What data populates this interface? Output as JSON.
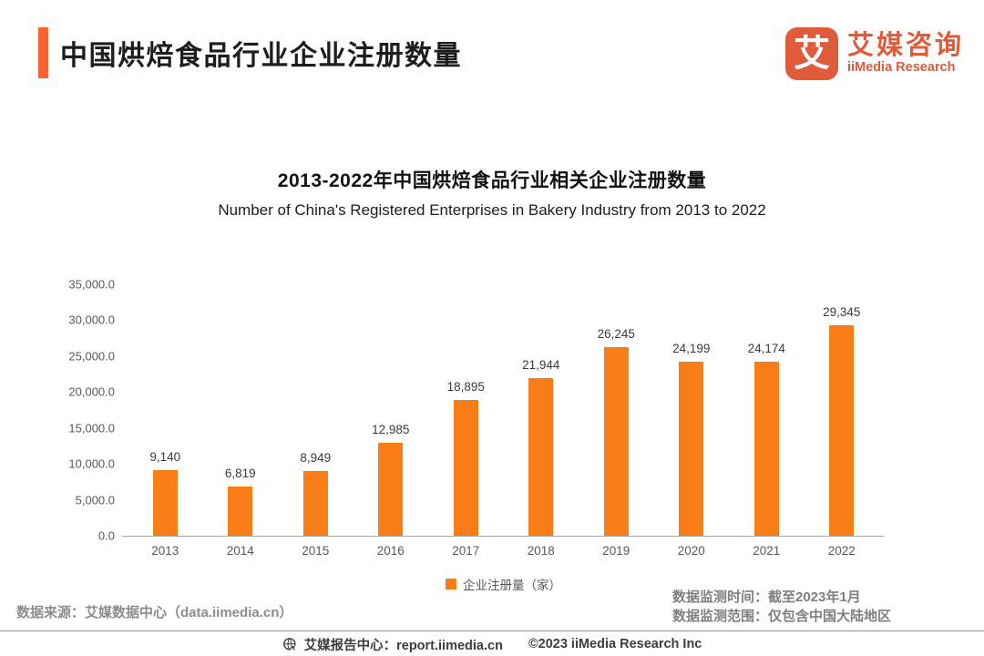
{
  "header": {
    "title": "中国烘焙食品行业企业注册数量",
    "accent_color": "#FA6432"
  },
  "logo": {
    "glyph": "艾",
    "name_cn": "艾媒咨询",
    "name_en": "iiMedia Research",
    "color": "#E05B3A"
  },
  "chart": {
    "title": "2013-2022年中国烘焙食品行业相关企业注册数量",
    "subtitle": "Number of China's Registered Enterprises in Bakery Industry from 2013 to 2022"
  },
  "chart_data": {
    "type": "bar",
    "title": "2013-2022年中国烘焙食品行业相关企业注册数量",
    "subtitle": "Number of China's Registered Enterprises in Bakery Industry from 2013 to 2022",
    "categories": [
      "2013",
      "2014",
      "2015",
      "2016",
      "2017",
      "2018",
      "2019",
      "2020",
      "2021",
      "2022"
    ],
    "values": [
      9140,
      6819,
      8949,
      12985,
      18895,
      21944,
      26245,
      24199,
      24174,
      29345
    ],
    "value_labels": [
      "9,140",
      "6,819",
      "8,949",
      "12,985",
      "18,895",
      "21,944",
      "26,245",
      "24,199",
      "24,174",
      "29,345"
    ],
    "y_tick_values": [
      0,
      5000,
      10000,
      15000,
      20000,
      25000,
      30000,
      35000
    ],
    "y_tick_labels": [
      "0.0",
      "5,000.0",
      "10,000.0",
      "15,000.0",
      "20,000.0",
      "25,000.0",
      "30,000.0",
      "35,000.0"
    ],
    "ylim": [
      0,
      35000
    ],
    "xlabel": "",
    "ylabel": "",
    "grid": false,
    "bar_color": "#F97D17",
    "legend": "企业注册量（家）",
    "legend_position": "bottom"
  },
  "notes": {
    "source": "数据来源：艾媒数据中心（data.iimedia.cn）",
    "monitor_time": "数据监测时间：截至2023年1月",
    "monitor_scope": "数据监测范围：仅包含中国大陆地区"
  },
  "footer": {
    "center_label": "艾媒报告中心：report.iimedia.cn",
    "copyright": "©2023 iiMedia Research Inc"
  }
}
